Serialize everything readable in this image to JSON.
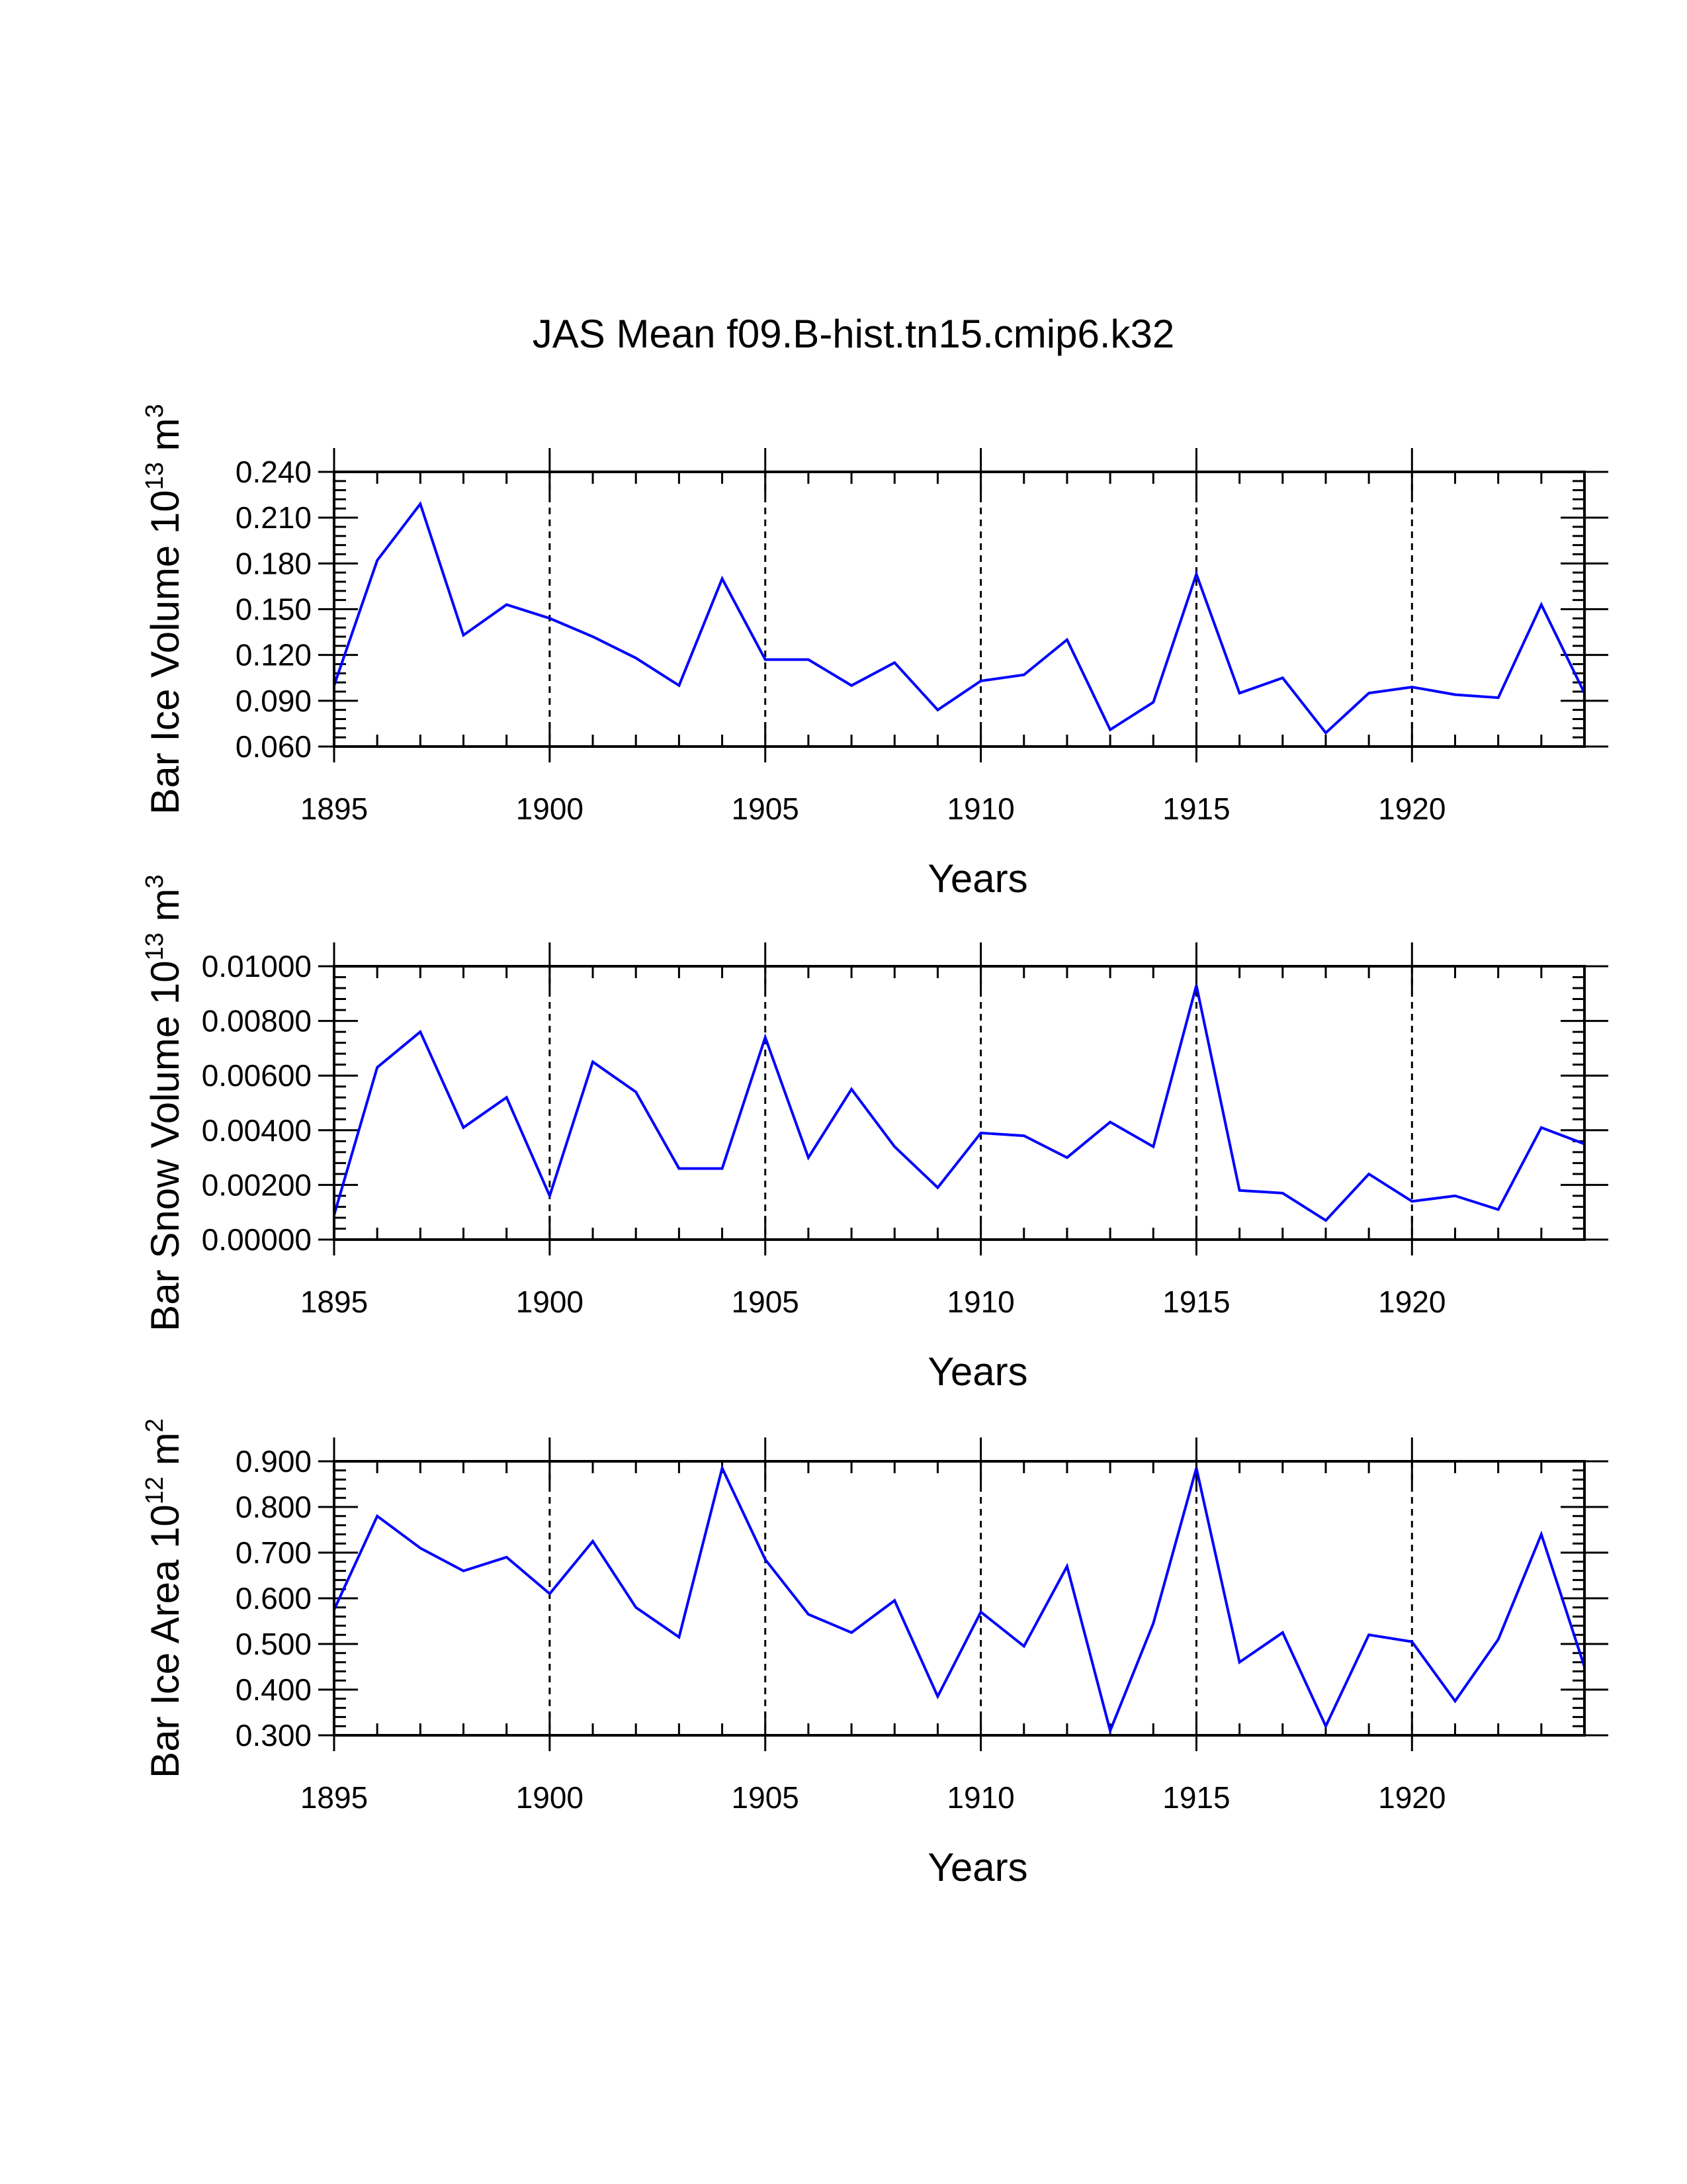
{
  "title": "JAS Mean f09.B-hist.tn15.cmip6.k32",
  "colors": {
    "line": "#0000ff",
    "axis": "#000000",
    "grid": "#000000",
    "background": "#ffffff"
  },
  "chart_data": [
    {
      "type": "line",
      "xlabel": "Years",
      "ylabel": {
        "text": "Bar Ice Volume 10",
        "exponent": "13",
        "unit": "m",
        "unit_exponent": "3"
      },
      "xlim": [
        1895,
        1924
      ],
      "ylim": [
        0.06,
        0.24
      ],
      "xticks": [
        1895,
        1900,
        1905,
        1910,
        1915,
        1920
      ],
      "xtick_labels": [
        "1895",
        "1900",
        "1905",
        "1910",
        "1915",
        "1920"
      ],
      "yticks": [
        0.06,
        0.09,
        0.12,
        0.15,
        0.18,
        0.21,
        0.24
      ],
      "ytick_labels": [
        "0.060",
        "0.090",
        "0.120",
        "0.150",
        "0.180",
        "0.210",
        "0.240"
      ],
      "grid": "dashed vertical at major x ticks",
      "x": [
        1895,
        1896,
        1897,
        1898,
        1899,
        1900,
        1901,
        1902,
        1903,
        1904,
        1905,
        1906,
        1907,
        1908,
        1909,
        1910,
        1911,
        1912,
        1913,
        1914,
        1915,
        1916,
        1917,
        1918,
        1919,
        1920,
        1921,
        1922,
        1923,
        1924
      ],
      "series": [
        {
          "name": "Bar Ice Volume",
          "values": [
            0.1,
            0.182,
            0.219,
            0.133,
            0.153,
            0.144,
            0.132,
            0.118,
            0.1,
            0.17,
            0.117,
            0.117,
            0.1,
            0.115,
            0.084,
            0.103,
            0.107,
            0.13,
            0.071,
            0.089,
            0.173,
            0.095,
            0.105,
            0.069,
            0.095,
            0.099,
            0.094,
            0.092,
            0.153,
            0.095
          ]
        }
      ]
    },
    {
      "type": "line",
      "xlabel": "Years",
      "ylabel": {
        "text": "Bar Snow Volume 10",
        "exponent": "13",
        "unit": "m",
        "unit_exponent": "3"
      },
      "xlim": [
        1895,
        1924
      ],
      "ylim": [
        0.0,
        0.01
      ],
      "xticks": [
        1895,
        1900,
        1905,
        1910,
        1915,
        1920
      ],
      "xtick_labels": [
        "1895",
        "1900",
        "1905",
        "1910",
        "1915",
        "1920"
      ],
      "yticks": [
        0.0,
        0.002,
        0.004,
        0.006,
        0.008,
        0.01
      ],
      "ytick_labels": [
        "0.00000",
        "0.00200",
        "0.00400",
        "0.00600",
        "0.00800",
        "0.01000"
      ],
      "grid": "dashed vertical at major x ticks",
      "x": [
        1895,
        1896,
        1897,
        1898,
        1899,
        1900,
        1901,
        1902,
        1903,
        1904,
        1905,
        1906,
        1907,
        1908,
        1909,
        1910,
        1911,
        1912,
        1913,
        1914,
        1915,
        1916,
        1917,
        1918,
        1919,
        1920,
        1921,
        1922,
        1923,
        1924
      ],
      "series": [
        {
          "name": "Bar Snow Volume",
          "values": [
            0.0009,
            0.0063,
            0.0076,
            0.0041,
            0.0052,
            0.0016,
            0.0065,
            0.0054,
            0.0026,
            0.0026,
            0.0074,
            0.003,
            0.0055,
            0.0034,
            0.0019,
            0.0039,
            0.0038,
            0.003,
            0.0043,
            0.0034,
            0.0093,
            0.0018,
            0.0017,
            0.0007,
            0.0024,
            0.0014,
            0.0016,
            0.0011,
            0.0041,
            0.0035
          ]
        }
      ]
    },
    {
      "type": "line",
      "xlabel": "Years",
      "ylabel": {
        "text": "Bar Ice Area 10",
        "exponent": "12",
        "unit": "m",
        "unit_exponent": "2"
      },
      "xlim": [
        1895,
        1924
      ],
      "ylim": [
        0.3,
        0.9
      ],
      "xticks": [
        1895,
        1900,
        1905,
        1910,
        1915,
        1920
      ],
      "xtick_labels": [
        "1895",
        "1900",
        "1905",
        "1910",
        "1915",
        "1920"
      ],
      "yticks": [
        0.3,
        0.4,
        0.5,
        0.6,
        0.7,
        0.8,
        0.9
      ],
      "ytick_labels": [
        "0.300",
        "0.400",
        "0.500",
        "0.600",
        "0.700",
        "0.800",
        "0.900"
      ],
      "grid": "dashed vertical at major x ticks",
      "x": [
        1895,
        1896,
        1897,
        1898,
        1899,
        1900,
        1901,
        1902,
        1903,
        1904,
        1905,
        1906,
        1907,
        1908,
        1909,
        1910,
        1911,
        1912,
        1913,
        1914,
        1915,
        1916,
        1917,
        1918,
        1919,
        1920,
        1921,
        1922,
        1923,
        1924
      ],
      "series": [
        {
          "name": "Bar Ice Area",
          "values": [
            0.575,
            0.78,
            0.71,
            0.66,
            0.69,
            0.61,
            0.725,
            0.58,
            0.515,
            0.885,
            0.685,
            0.565,
            0.525,
            0.595,
            0.385,
            0.57,
            0.495,
            0.67,
            0.31,
            0.545,
            0.885,
            0.46,
            0.525,
            0.32,
            0.52,
            0.505,
            0.375,
            0.51,
            0.74,
            0.45
          ]
        }
      ]
    }
  ]
}
